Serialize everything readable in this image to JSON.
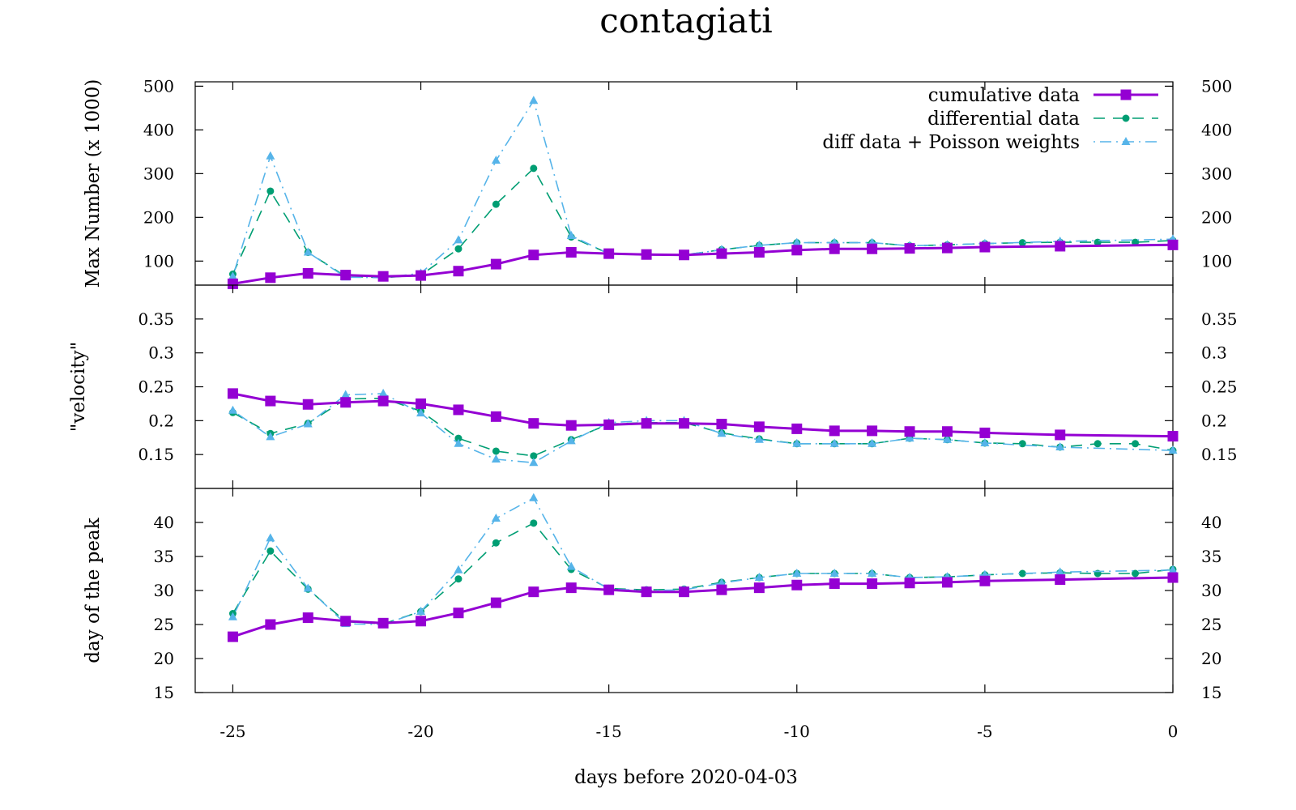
{
  "chart_data": {
    "type": "line",
    "title": "contagiati",
    "xlabel": "days before 2020-04-03",
    "xlim": [
      -26,
      0
    ],
    "xticks": [
      -25,
      -20,
      -15,
      -10,
      -5,
      0
    ],
    "x": [
      -25,
      -24,
      -23,
      -22,
      -21,
      -20,
      -19,
      -18,
      -17,
      -16,
      -15,
      -14,
      -13,
      -12,
      -11,
      -10,
      -9,
      -8,
      -7,
      -6,
      -5,
      -4,
      -3,
      -2,
      -1,
      0
    ],
    "series_style": [
      {
        "name": "cumulative data",
        "color": "#9400d3",
        "dash": "",
        "marker": "square",
        "width": 3
      },
      {
        "name": "differential data",
        "color": "#009e73",
        "dash": "14,10",
        "marker": "circle",
        "width": 1.6
      },
      {
        "name": "diff data + Poisson weights",
        "color": "#56b4e9",
        "dash": "2,6,14,6",
        "marker": "triangle",
        "width": 1.6
      }
    ],
    "panels": [
      {
        "ylabel": "Max Number (x 1000)",
        "ylim": [
          45,
          510
        ],
        "yticks": [
          100,
          200,
          300,
          400,
          500
        ],
        "legend_position": "top-right",
        "series": [
          {
            "name": "cumulative data",
            "x": [
              -25,
              -24,
              -23,
              -22,
              -21,
              -20,
              -19,
              -18,
              -17,
              -16,
              -15,
              -14,
              -13,
              -12,
              -11,
              -10,
              -9,
              -8,
              -7,
              -6,
              -5,
              -3,
              0
            ],
            "values": [
              48,
              62,
              72,
              68,
              65,
              67,
              77,
              93,
              114,
              120,
              117,
              115,
              114,
              117,
              120,
              125,
              128,
              128,
              129,
              130,
              132,
              134,
              137
            ]
          },
          {
            "name": "differential data",
            "x": [
              -25,
              -24,
              -23,
              -22,
              -21,
              -20,
              -19,
              -18,
              -17,
              -16,
              -15,
              -14,
              -13,
              -12,
              -11,
              -10,
              -9,
              -8,
              -7,
              -6,
              -5,
              -4,
              -3,
              -2,
              -1,
              0
            ],
            "values": [
              70,
              260,
              120,
              65,
              62,
              68,
              128,
              230,
              312,
              155,
              117,
              114,
              114,
              126,
              136,
              142,
              142,
              142,
              135,
              137,
              140,
              142,
              143,
              143,
              143,
              147
            ]
          },
          {
            "name": "diff data + Poisson weights",
            "x": [
              -25,
              -24,
              -23,
              -22,
              -21,
              -20,
              -19,
              -18,
              -17,
              -16,
              -15,
              -14,
              -13,
              -12,
              -11,
              -10,
              -9,
              -8,
              -7,
              -6,
              -5,
              -3,
              0
            ],
            "values": [
              65,
              340,
              120,
              63,
              62,
              72,
              148,
              330,
              467,
              158,
              117,
              114,
              114,
              126,
              136,
              142,
              142,
              142,
              135,
              137,
              140,
              145,
              150
            ]
          }
        ]
      },
      {
        "ylabel": "\"velocity\"",
        "ylim": [
          0.1,
          0.4
        ],
        "yticks": [
          0.15,
          0.2,
          0.25,
          0.3,
          0.35
        ],
        "series": [
          {
            "name": "cumulative data",
            "x": [
              -25,
              -24,
              -23,
              -22,
              -21,
              -20,
              -19,
              -18,
              -17,
              -16,
              -15,
              -14,
              -13,
              -12,
              -11,
              -10,
              -9,
              -8,
              -7,
              -6,
              -5,
              -3,
              0
            ],
            "values": [
              0.24,
              0.229,
              0.224,
              0.227,
              0.229,
              0.225,
              0.216,
              0.206,
              0.196,
              0.193,
              0.194,
              0.196,
              0.196,
              0.195,
              0.191,
              0.188,
              0.185,
              0.185,
              0.184,
              0.184,
              0.182,
              0.179,
              0.177
            ]
          },
          {
            "name": "differential data",
            "x": [
              -25,
              -24,
              -23,
              -22,
              -21,
              -20,
              -19,
              -18,
              -17,
              -16,
              -15,
              -14,
              -13,
              -12,
              -11,
              -10,
              -9,
              -8,
              -7,
              -6,
              -5,
              -4,
              -3,
              -2,
              -1,
              0
            ],
            "values": [
              0.212,
              0.181,
              0.196,
              0.232,
              0.233,
              0.214,
              0.174,
              0.155,
              0.148,
              0.172,
              0.195,
              0.197,
              0.197,
              0.182,
              0.173,
              0.166,
              0.166,
              0.166,
              0.174,
              0.172,
              0.167,
              0.166,
              0.161,
              0.166,
              0.166,
              0.156
            ]
          },
          {
            "name": "diff data + Poisson weights",
            "x": [
              -25,
              -24,
              -23,
              -22,
              -21,
              -20,
              -19,
              -18,
              -17,
              -16,
              -15,
              -14,
              -13,
              -12,
              -11,
              -10,
              -9,
              -8,
              -7,
              -6,
              -5,
              -3,
              0
            ],
            "values": [
              0.215,
              0.176,
              0.195,
              0.238,
              0.24,
              0.211,
              0.166,
              0.143,
              0.138,
              0.17,
              0.197,
              0.2,
              0.2,
              0.181,
              0.172,
              0.166,
              0.166,
              0.166,
              0.174,
              0.172,
              0.167,
              0.161,
              0.156
            ]
          }
        ]
      },
      {
        "ylabel": "day of the peak",
        "ylim": [
          15,
          45
        ],
        "yticks": [
          15,
          20,
          25,
          30,
          35,
          40
        ],
        "series": [
          {
            "name": "cumulative data",
            "x": [
              -25,
              -24,
              -23,
              -22,
              -21,
              -20,
              -19,
              -18,
              -17,
              -16,
              -15,
              -14,
              -13,
              -12,
              -11,
              -10,
              -9,
              -8,
              -7,
              -6,
              -5,
              -3,
              0
            ],
            "values": [
              23.2,
              25.0,
              26.0,
              25.5,
              25.2,
              25.5,
              26.7,
              28.2,
              29.8,
              30.4,
              30.1,
              29.8,
              29.8,
              30.1,
              30.4,
              30.8,
              31.0,
              31.0,
              31.1,
              31.2,
              31.4,
              31.6,
              31.9
            ]
          },
          {
            "name": "differential data",
            "x": [
              -25,
              -24,
              -23,
              -22,
              -21,
              -20,
              -19,
              -18,
              -17,
              -16,
              -15,
              -14,
              -13,
              -12,
              -11,
              -10,
              -9,
              -8,
              -7,
              -6,
              -5,
              -4,
              -3,
              -2,
              -1,
              0
            ],
            "values": [
              26.6,
              35.8,
              30.2,
              25.4,
              25.1,
              26.9,
              31.7,
              37.0,
              39.9,
              33.1,
              30.3,
              30.1,
              30.2,
              31.2,
              31.9,
              32.5,
              32.5,
              32.5,
              31.9,
              32.0,
              32.3,
              32.5,
              32.6,
              32.5,
              32.5,
              33.1
            ]
          },
          {
            "name": "diff data + Poisson weights",
            "x": [
              -25,
              -24,
              -23,
              -22,
              -21,
              -20,
              -19,
              -18,
              -17,
              -16,
              -15,
              -14,
              -13,
              -12,
              -11,
              -10,
              -9,
              -8,
              -7,
              -6,
              -5,
              -3,
              0
            ],
            "values": [
              26.1,
              37.7,
              30.3,
              25.1,
              25.0,
              26.9,
              33.0,
              40.6,
              43.6,
              33.5,
              30.2,
              30.0,
              30.1,
              31.1,
              31.9,
              32.5,
              32.5,
              32.5,
              31.9,
              32.0,
              32.3,
              32.7,
              33.0
            ]
          }
        ]
      }
    ]
  }
}
